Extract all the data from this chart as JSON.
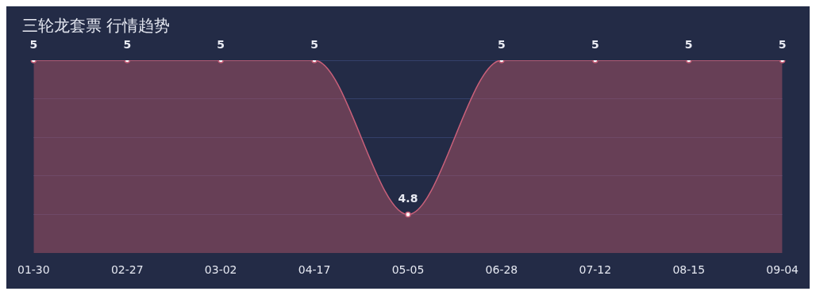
{
  "chart_data": {
    "type": "area",
    "title": "三轮龙套票 行情趋势",
    "categories": [
      "01-30",
      "02-27",
      "03-02",
      "04-17",
      "05-05",
      "06-28",
      "07-12",
      "08-15",
      "09-04"
    ],
    "series": [
      {
        "color": "#c8607a",
        "values": [
          5,
          5,
          5,
          5,
          4.8,
          5,
          5,
          5,
          5
        ]
      }
    ],
    "ylim": [
      4.75,
      5
    ],
    "yticks": [
      {
        "value": 4.8,
        "label": null
      },
      {
        "value": 4.85,
        "label": null
      },
      {
        "value": 4.9,
        "label": null
      },
      {
        "value": 4.95,
        "label": null
      },
      {
        "value": 5,
        "label": null
      }
    ],
    "grid": "y",
    "tick_labels": "x",
    "data_labels": true,
    "marker": "circle",
    "legend": false
  }
}
